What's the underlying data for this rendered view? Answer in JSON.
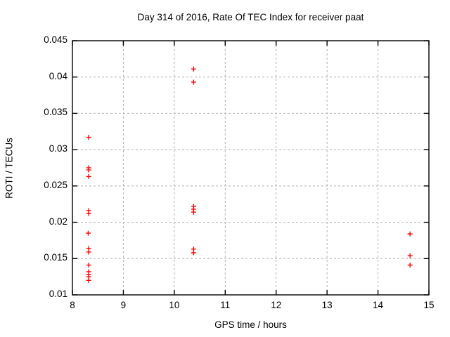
{
  "chart_data": {
    "type": "scatter",
    "title": "Day 314 of 2016, Rate Of TEC Index for receiver paat",
    "xlabel": "GPS time / hours",
    "ylabel": "ROTI / TECUs",
    "xlim": [
      8,
      15
    ],
    "ylim": [
      0.01,
      0.045
    ],
    "grid": true,
    "legend": "none",
    "x_ticks": [
      {
        "v": 8,
        "label": "8"
      },
      {
        "v": 9,
        "label": "9"
      },
      {
        "v": 10,
        "label": "10"
      },
      {
        "v": 11,
        "label": "11"
      },
      {
        "v": 12,
        "label": "12"
      },
      {
        "v": 13,
        "label": "13"
      },
      {
        "v": 14,
        "label": "14"
      },
      {
        "v": 15,
        "label": "15"
      }
    ],
    "y_ticks": [
      {
        "v": 0.01,
        "label": "0.01"
      },
      {
        "v": 0.015,
        "label": "0.015"
      },
      {
        "v": 0.02,
        "label": "0.02"
      },
      {
        "v": 0.025,
        "label": "0.025"
      },
      {
        "v": 0.03,
        "label": "0.03"
      },
      {
        "v": 0.035,
        "label": "0.035"
      },
      {
        "v": 0.04,
        "label": "0.04"
      },
      {
        "v": 0.045,
        "label": "0.045"
      }
    ],
    "series": [
      {
        "name": "ROTI",
        "marker": "plus",
        "color": "#ff0000",
        "points": [
          [
            8.32,
            0.0317
          ],
          [
            8.32,
            0.0275
          ],
          [
            8.32,
            0.0272
          ],
          [
            8.32,
            0.0263
          ],
          [
            8.32,
            0.0216
          ],
          [
            8.32,
            0.0212
          ],
          [
            8.31,
            0.0185
          ],
          [
            8.32,
            0.0164
          ],
          [
            8.32,
            0.0159
          ],
          [
            8.32,
            0.0141
          ],
          [
            8.32,
            0.0132
          ],
          [
            8.32,
            0.0128
          ],
          [
            8.32,
            0.0125
          ],
          [
            8.32,
            0.012
          ],
          [
            10.38,
            0.0411
          ],
          [
            10.38,
            0.0393
          ],
          [
            10.38,
            0.0222
          ],
          [
            10.38,
            0.0218
          ],
          [
            10.38,
            0.0214
          ],
          [
            10.38,
            0.0163
          ],
          [
            10.38,
            0.0158
          ],
          [
            14.63,
            0.0184
          ],
          [
            14.63,
            0.0154
          ],
          [
            14.63,
            0.0141
          ]
        ]
      }
    ],
    "colors": {
      "marker": "#ff0000",
      "grid": "#b0b0b0",
      "border": "#000000",
      "background": "#ffffff",
      "text": "#000000"
    }
  }
}
